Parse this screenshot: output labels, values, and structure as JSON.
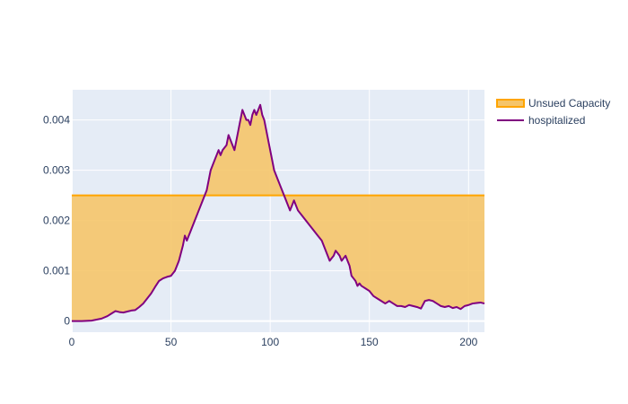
{
  "chart_data": {
    "type": "line",
    "title": "",
    "xlabel": "",
    "ylabel": "",
    "xlim": [
      0,
      208
    ],
    "ylim": [
      -0.00022,
      0.0046
    ],
    "grid": true,
    "legend_position": "top-right",
    "x_ticks": [
      0,
      50,
      100,
      150,
      200
    ],
    "x_tick_labels": [
      "0",
      "50",
      "100",
      "150",
      "200"
    ],
    "y_ticks": [
      0,
      0.001,
      0.002,
      0.003,
      0.004
    ],
    "y_tick_labels": [
      "0",
      "0.001",
      "0.002",
      "0.003",
      "0.004"
    ],
    "colors": {
      "plot_bg": "#E5ECF6",
      "grid": "#ffffff",
      "capacity": "#FFA500",
      "fill": "#F5C56A",
      "hospitalized": "#800080"
    },
    "series": [
      {
        "name": "Unsued Capacity",
        "kind": "constant",
        "value": 0.0025
      },
      {
        "name": "hospitalized",
        "x": [
          0,
          5,
          10,
          15,
          18,
          20,
          22,
          24,
          26,
          28,
          30,
          32,
          34,
          36,
          38,
          40,
          42,
          44,
          46,
          48,
          50,
          52,
          54,
          56,
          57,
          58,
          60,
          62,
          64,
          66,
          68,
          69,
          70,
          72,
          73,
          74,
          75,
          76,
          78,
          79,
          80,
          81,
          82,
          83,
          84,
          85,
          86,
          87,
          88,
          89,
          90,
          91,
          92,
          93,
          94,
          95,
          96,
          97,
          98,
          100,
          102,
          103,
          104,
          105,
          106,
          108,
          110,
          111,
          112,
          113,
          114,
          116,
          118,
          120,
          122,
          124,
          126,
          128,
          130,
          131,
          132,
          133,
          134,
          135,
          136,
          137,
          138,
          139,
          140,
          141,
          142,
          143,
          144,
          145,
          146,
          148,
          150,
          152,
          154,
          156,
          158,
          160,
          162,
          164,
          166,
          168,
          170,
          172,
          174,
          176,
          178,
          180,
          182,
          184,
          186,
          188,
          190,
          192,
          194,
          196,
          198,
          200,
          202,
          204,
          206,
          208
        ],
        "values": [
          0.0,
          0.0,
          1e-05,
          5e-05,
          0.0001,
          0.00015,
          0.0002,
          0.00018,
          0.00017,
          0.00019,
          0.00021,
          0.00022,
          0.00028,
          0.00035,
          0.00045,
          0.00055,
          0.00068,
          0.0008,
          0.00085,
          0.00088,
          0.0009,
          0.001,
          0.0012,
          0.0015,
          0.0017,
          0.0016,
          0.0018,
          0.002,
          0.0022,
          0.0024,
          0.0026,
          0.0028,
          0.003,
          0.0032,
          0.0033,
          0.0034,
          0.0033,
          0.0034,
          0.0035,
          0.0037,
          0.0036,
          0.0035,
          0.0034,
          0.0036,
          0.0038,
          0.004,
          0.0042,
          0.0041,
          0.004,
          0.004,
          0.0039,
          0.0041,
          0.0042,
          0.0041,
          0.0042,
          0.0043,
          0.0041,
          0.004,
          0.0038,
          0.0034,
          0.003,
          0.0029,
          0.0028,
          0.0027,
          0.0026,
          0.0024,
          0.0022,
          0.0023,
          0.0024,
          0.0023,
          0.0022,
          0.0021,
          0.002,
          0.0019,
          0.0018,
          0.0017,
          0.0016,
          0.0014,
          0.0012,
          0.00125,
          0.0013,
          0.0014,
          0.00135,
          0.0013,
          0.0012,
          0.00125,
          0.0013,
          0.0012,
          0.0011,
          0.0009,
          0.00085,
          0.0008,
          0.0007,
          0.00075,
          0.0007,
          0.00065,
          0.0006,
          0.0005,
          0.00045,
          0.0004,
          0.00035,
          0.0004,
          0.00035,
          0.0003,
          0.0003,
          0.00028,
          0.00032,
          0.0003,
          0.00028,
          0.00025,
          0.0004,
          0.00042,
          0.0004,
          0.00035,
          0.0003,
          0.00028,
          0.0003,
          0.00026,
          0.00028,
          0.00024,
          0.0003,
          0.00032,
          0.00035,
          0.00036,
          0.00037,
          0.00035
        ]
      }
    ]
  }
}
